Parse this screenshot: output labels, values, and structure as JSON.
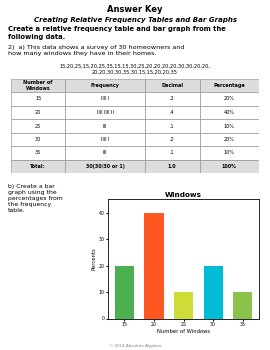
{
  "chart_data": {
    "type": "bar",
    "title": "Windows",
    "xlabel": "Number of Windows",
    "ylabel": "Percents",
    "categories": [
      "15",
      "20",
      "25",
      "30",
      "35"
    ],
    "values": [
      20,
      40,
      10,
      20,
      10
    ],
    "colors": [
      "#4caf50",
      "#ff5722",
      "#cddc39",
      "#00bcd4",
      "#8bc34a"
    ],
    "ylim": [
      0,
      45
    ],
    "yticks": [
      0,
      10,
      20,
      30,
      40
    ],
    "grid": false,
    "annotations": [
      "Answer Key",
      "Creating Relative Frequency Tables and Bar Graphs",
      "Create a relative frequency table and bar graph from the\nfollowing data.",
      "2)  a) This data shows a survey of 30 homeowners and\nhow many windows they have in their homes.",
      "15,20,25,15,20,25,35,15,15,30,25,20,20,20,20,30,30,20,20,\n20,20,30,30,35,30,15,15,20,20,35",
      "b) Create a bar\ngraph using the\npercentages from\nthe frequency\ntable.",
      "© 2014 Absolute Algebra"
    ],
    "table": {
      "headers": [
        "Number of\nWindows",
        "Frequency",
        "Decimal",
        "Percentage"
      ],
      "rows": [
        [
          "15",
          "llll I",
          ".2",
          "20%"
        ],
        [
          "20",
          "llll llll II",
          ".4",
          "40%"
        ],
        [
          "25",
          "III",
          ".1",
          "10%"
        ],
        [
          "30",
          "llll I",
          ".2",
          "20%"
        ],
        [
          "35",
          "III",
          ".1",
          "10%"
        ]
      ],
      "total": [
        "Total:",
        "30(30/30 or 1)",
        "1.0",
        "100%"
      ]
    }
  }
}
